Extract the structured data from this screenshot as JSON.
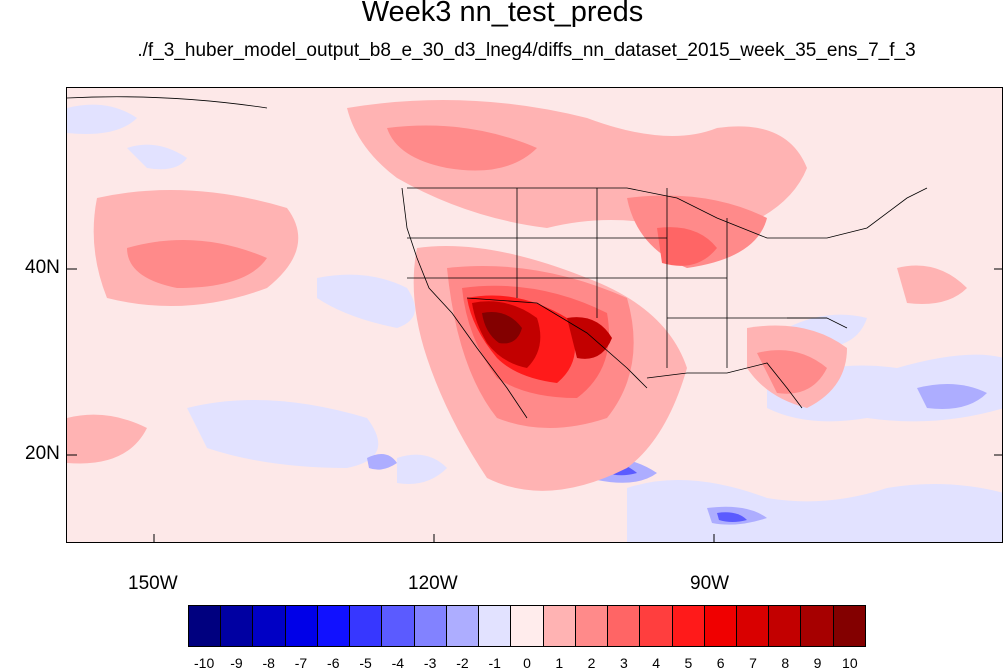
{
  "title": "Week3 nn_test_preds",
  "subtitle": "./f_3_huber_model_output_b8_e_30_d3_lneg4/diffs_nn_dataset_2015_week_35_ens_7_f_3",
  "axes": {
    "lat_labels": [
      "40N",
      "20N"
    ],
    "lon_labels": [
      "150W",
      "120W",
      "90W"
    ]
  },
  "colorbar": {
    "labels": [
      "-10",
      "-9",
      "-8",
      "-7",
      "-6",
      "-5",
      "-4",
      "-3",
      "-2",
      "-1",
      "0",
      "1",
      "2",
      "3",
      "4",
      "5",
      "6",
      "7",
      "8",
      "9",
      "10"
    ],
    "colors": [
      "#00007f",
      "#0000a2",
      "#0000c5",
      "#0000e8",
      "#1111ff",
      "#3737ff",
      "#5b5bff",
      "#8282ff",
      "#adadff",
      "#e2e2ff",
      "#ffecec",
      "#ffb3b3",
      "#ff8a8a",
      "#ff6565",
      "#ff3e3e",
      "#ff1a1a",
      "#f00000",
      "#d90000",
      "#c20000",
      "#a60000",
      "#830000"
    ]
  }
}
